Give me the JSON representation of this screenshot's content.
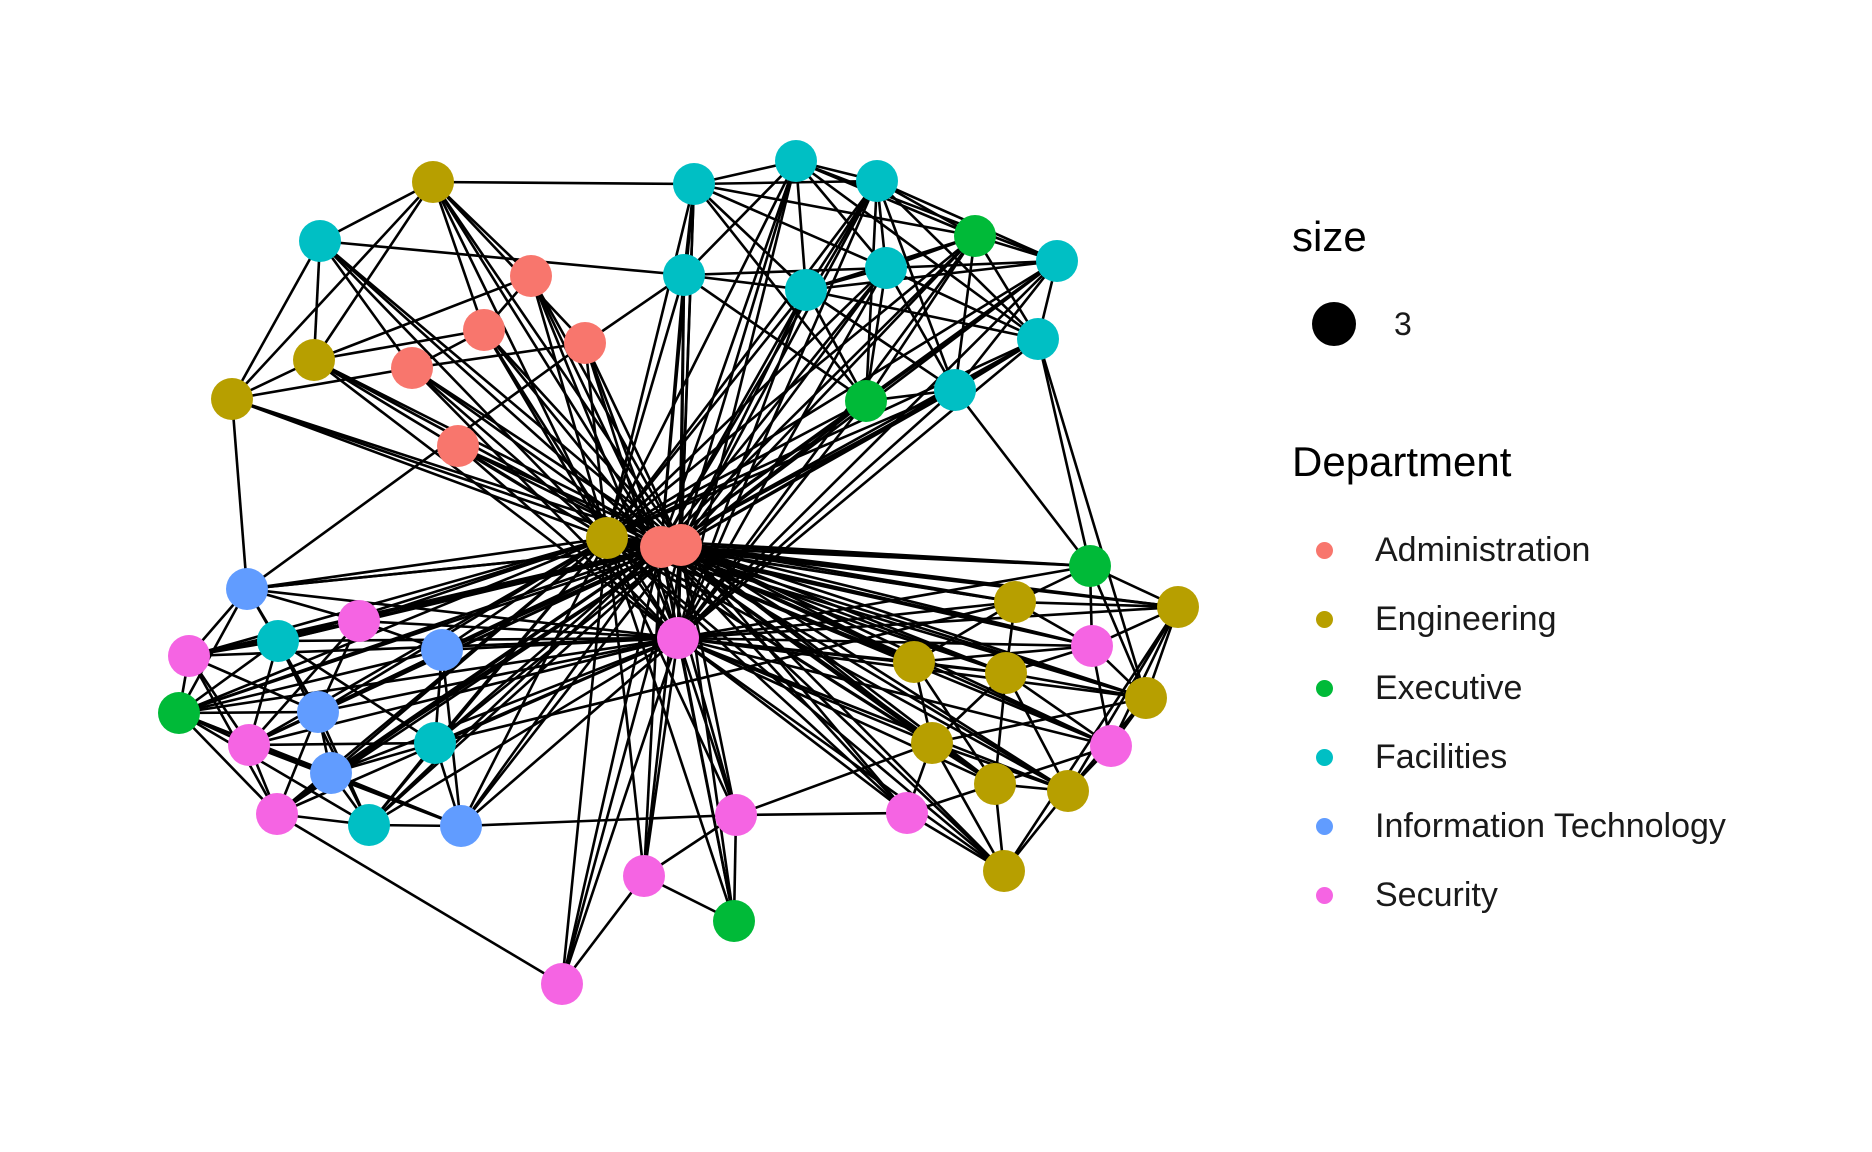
{
  "legend": {
    "size_title": "size",
    "size_value": "3",
    "department_title": "Department",
    "departments": [
      {
        "label": "Administration",
        "color": "#F8766D"
      },
      {
        "label": "Engineering",
        "color": "#B79F00"
      },
      {
        "label": "Executive",
        "color": "#00BA38"
      },
      {
        "label": "Facilities",
        "color": "#00BFC4"
      },
      {
        "label": "Information Technology",
        "color": "#619CFF"
      },
      {
        "label": "Security",
        "color": "#F564E3"
      }
    ]
  }
}
